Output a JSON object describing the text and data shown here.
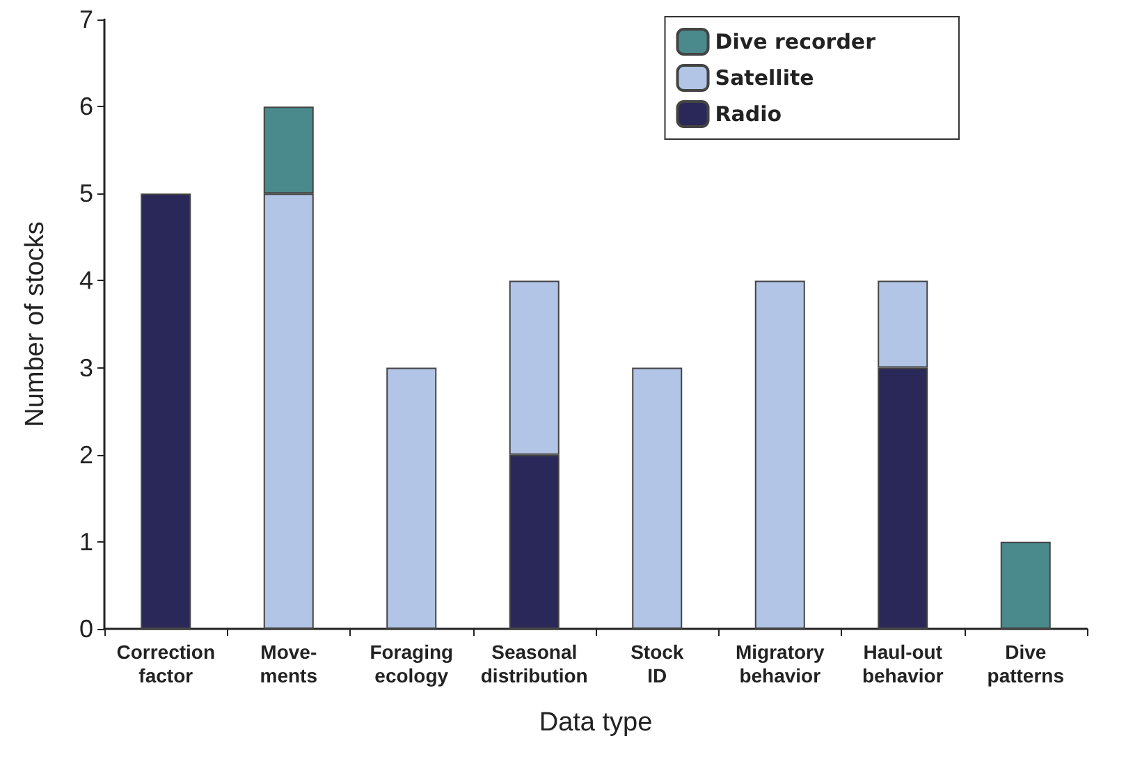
{
  "chart_data": {
    "type": "bar",
    "stacked": true,
    "xlabel": "Data type",
    "ylabel": "Number of stocks",
    "categories": [
      "Correction\nfactor",
      "Move-\nments",
      "Foraging\necology",
      "Seasonal\ndistribution",
      "Stock\nID",
      "Migratory\nbehavior",
      "Haul-out\nbehavior",
      "Dive\npatterns"
    ],
    "series": [
      {
        "name": "Radio",
        "color": "#2a2858",
        "values": [
          5,
          null,
          null,
          2,
          null,
          null,
          3,
          null
        ]
      },
      {
        "name": "Satellite",
        "color": "#b3c5e6",
        "values": [
          null,
          5,
          3,
          2,
          3,
          4,
          1,
          null
        ]
      },
      {
        "name": "Dive recorder",
        "color": "#4b8a8c",
        "values": [
          null,
          1,
          null,
          null,
          null,
          null,
          null,
          1
        ]
      }
    ],
    "ylim": [
      0,
      7
    ],
    "yticks": [
      0,
      1,
      2,
      3,
      4,
      5,
      6,
      7
    ],
    "grid": false,
    "legend": "top right"
  }
}
